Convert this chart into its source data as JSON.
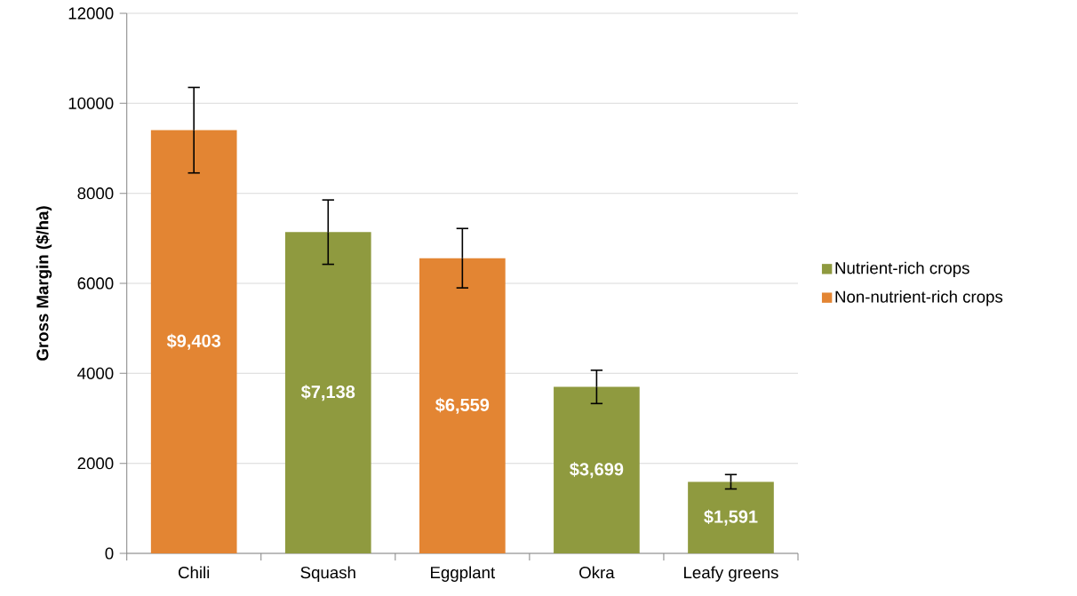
{
  "chart_data": {
    "type": "bar",
    "ylabel": "Gross Margin ($/ha)",
    "categories": [
      "Chili",
      "Squash",
      "Eggplant",
      "Okra",
      "Leafy greens"
    ],
    "series": [
      {
        "name": "Nutrient-rich crops",
        "color": "#8f9a3f",
        "values": [
          null,
          7138,
          null,
          3699,
          1591
        ],
        "errors": [
          null,
          715,
          null,
          370,
          160
        ],
        "value_labels": [
          null,
          "$7,138",
          null,
          "$3,699",
          "$1,591"
        ]
      },
      {
        "name": "Non-nutrient-rich crops",
        "color": "#e38533",
        "values": [
          9403,
          null,
          6559,
          null,
          null
        ],
        "errors": [
          950,
          null,
          660,
          null,
          null
        ],
        "value_labels": [
          "$9,403",
          null,
          "$6,559",
          null,
          null
        ]
      }
    ],
    "ylim": [
      0,
      12000
    ],
    "yticks": [
      0,
      2000,
      4000,
      6000,
      8000,
      10000,
      12000
    ],
    "grid": "y",
    "legend": "right"
  }
}
